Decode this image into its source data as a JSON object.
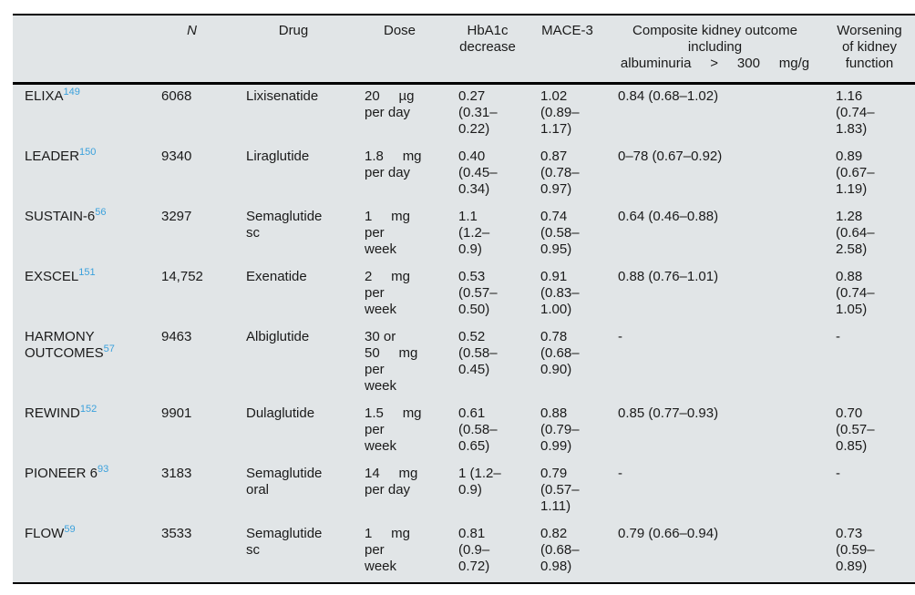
{
  "colors": {
    "table_background": "#e1e5e7",
    "rule": "#000000",
    "reference_link": "#3ba1dc",
    "text": "#1a1a1a"
  },
  "table": {
    "columns": [
      {
        "key": "trial",
        "label": ""
      },
      {
        "key": "n",
        "label": "N"
      },
      {
        "key": "drug",
        "label": "Drug"
      },
      {
        "key": "dose",
        "label": "Dose"
      },
      {
        "key": "hba1c",
        "label": "HbA1c\ndecrease"
      },
      {
        "key": "mace",
        "label": "MACE-3"
      },
      {
        "key": "kidney",
        "label": "Composite kidney outcome\nincluding\nalbuminuria     >     300     mg/g"
      },
      {
        "key": "worsening",
        "label": "Worsening\nof kidney\nfunction"
      }
    ],
    "rows": [
      {
        "trial": "ELIXA",
        "ref": "149",
        "n": "6068",
        "drug": "Lixisenatide",
        "dose": "20     µg\nper day",
        "hba1c": "0.27\n(0.31–\n0.22)",
        "mace": "1.02\n(0.89–\n1.17)",
        "kidney": "0.84 (0.68–1.02)",
        "worsening": "1.16\n(0.74–\n1.83)"
      },
      {
        "trial": "LEADER",
        "ref": "150",
        "n": "9340",
        "drug": "Liraglutide",
        "dose": "1.8     mg\nper day",
        "hba1c": "0.40\n(0.45–\n0.34)",
        "mace": "0.87\n(0.78–\n0.97)",
        "kidney": "0–78 (0.67–0.92)",
        "worsening": "0.89\n(0.67–\n1.19)"
      },
      {
        "trial": "SUSTAIN-6",
        "ref": "56",
        "n": "3297",
        "drug": "Semaglutide\nsc",
        "dose": "1     mg\nper\nweek",
        "hba1c": "1.1\n(1.2–\n0.9)",
        "mace": "0.74\n(0.58–\n0.95)",
        "kidney": "0.64 (0.46–0.88)",
        "worsening": "1.28\n(0.64–\n2.58)"
      },
      {
        "trial": "EXSCEL",
        "ref": "151",
        "n": "14,752",
        "drug": "Exenatide",
        "dose": "2     mg\nper\nweek",
        "hba1c": "0.53\n(0.57–\n0.50)",
        "mace": "0.91\n(0.83–\n1.00)",
        "kidney": "0.88 (0.76–1.01)",
        "worsening": "0.88\n(0.74–\n1.05)"
      },
      {
        "trial": "HARMONY OUTCOMES",
        "ref": "57",
        "n": "9463",
        "drug": "Albiglutide",
        "dose": "30 or\n50     mg\nper\nweek",
        "hba1c": "0.52\n(0.58–\n0.45)",
        "mace": "0.78\n(0.68–\n0.90)",
        "kidney": "-",
        "worsening": "-"
      },
      {
        "trial": "REWIND",
        "ref": "152",
        "n": "9901",
        "drug": "Dulaglutide",
        "dose": "1.5     mg\nper\nweek",
        "hba1c": "0.61\n(0.58–\n0.65)",
        "mace": "0.88\n(0.79–\n0.99)",
        "kidney": "0.85 (0.77–0.93)",
        "worsening": "0.70\n(0.57–\n0.85)"
      },
      {
        "trial": "PIONEER 6",
        "ref": "93",
        "n": "3183",
        "drug": "Semaglutide\noral",
        "dose": "14     mg\nper day",
        "hba1c": "1 (1.2–\n0.9)",
        "mace": "0.79\n(0.57–\n1.11)",
        "kidney": "-",
        "worsening": "-"
      },
      {
        "trial": "FLOW",
        "ref": "59",
        "n": "3533",
        "drug": "Semaglutide\nsc",
        "dose": "1     mg\nper\nweek",
        "hba1c": "0.81\n(0.9–\n0.72)",
        "mace": "0.82\n(0.68–\n0.98)",
        "kidney": "0.79 (0.66–0.94)",
        "worsening": "0.73\n(0.59–\n0.89)"
      }
    ]
  }
}
